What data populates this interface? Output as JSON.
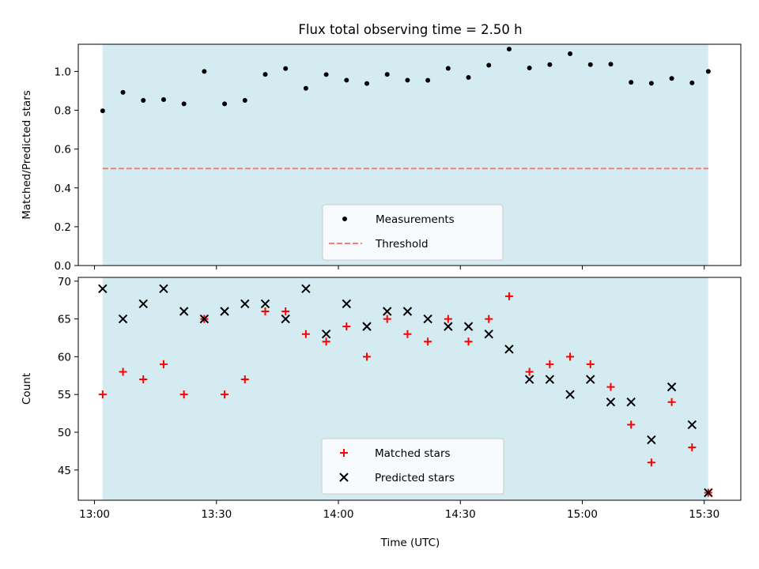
{
  "title": "Flux total observing time = 2.50 h",
  "x_axis": {
    "label": "Time (UTC)",
    "range": [
      "12:56",
      "15:39"
    ],
    "tick_labels": [
      "13:00",
      "13:30",
      "14:00",
      "14:30",
      "15:00",
      "15:30"
    ],
    "tick_values": [
      "13:00",
      "13:30",
      "14:00",
      "14:30",
      "15:00",
      "15:30"
    ]
  },
  "shaded_span": {
    "start": "13:02",
    "end": "15:31",
    "color": "#add8e6"
  },
  "chart_data": [
    {
      "type": "scatter",
      "ylabel": "Matched/Predicted stars",
      "ylim": [
        0,
        1.14
      ],
      "yticks": [
        "0.0",
        "0.2",
        "0.4",
        "0.6",
        "0.8",
        "1.0"
      ],
      "ytick_values": [
        0,
        0.2,
        0.4,
        0.6,
        0.8,
        1.0
      ],
      "legend_position": "lower-center",
      "series": [
        {
          "name": "Measurements",
          "marker": "dot",
          "color": "#000000",
          "x": [
            "13:02",
            "13:07",
            "13:12",
            "13:17",
            "13:22",
            "13:27",
            "13:32",
            "13:37",
            "13:42",
            "13:47",
            "13:52",
            "13:57",
            "14:02",
            "14:07",
            "14:12",
            "14:17",
            "14:22",
            "14:27",
            "14:32",
            "14:37",
            "14:42",
            "14:47",
            "14:52",
            "14:57",
            "15:02",
            "15:07",
            "15:12",
            "15:17",
            "15:22",
            "15:27",
            "15:31"
          ],
          "y": [
            0.797,
            0.892,
            0.851,
            0.855,
            0.833,
            1.0,
            0.833,
            0.851,
            0.985,
            1.015,
            0.913,
            0.984,
            0.955,
            0.938,
            0.985,
            0.955,
            0.954,
            1.016,
            0.969,
            1.032,
            1.115,
            1.018,
            1.035,
            1.091,
            1.035,
            1.037,
            0.944,
            0.939,
            0.964,
            0.941,
            1.0
          ]
        },
        {
          "name": "Threshold",
          "style": "dashed",
          "color": "#f08080",
          "x": [
            "13:02",
            "15:31"
          ],
          "y": [
            0.5,
            0.5
          ]
        }
      ]
    },
    {
      "type": "scatter",
      "ylabel": "Count",
      "ylim": [
        41,
        70.5
      ],
      "yticks": [
        "45",
        "50",
        "55",
        "60",
        "65",
        "70"
      ],
      "ytick_values": [
        45,
        50,
        55,
        60,
        65,
        70
      ],
      "legend_position": "lower-center",
      "series": [
        {
          "name": "Matched stars",
          "marker": "plus",
          "color": "#ff0000",
          "x": [
            "13:02",
            "13:07",
            "13:12",
            "13:17",
            "13:22",
            "13:27",
            "13:32",
            "13:37",
            "13:42",
            "13:47",
            "13:52",
            "13:57",
            "14:02",
            "14:07",
            "14:12",
            "14:17",
            "14:22",
            "14:27",
            "14:32",
            "14:37",
            "14:42",
            "14:47",
            "14:52",
            "14:57",
            "15:02",
            "15:07",
            "15:12",
            "15:17",
            "15:22",
            "15:27",
            "15:31"
          ],
          "y": [
            55,
            58,
            57,
            59,
            55,
            65,
            55,
            57,
            66,
            66,
            63,
            62,
            64,
            60,
            65,
            63,
            62,
            65,
            62,
            65,
            68,
            58,
            59,
            60,
            59,
            56,
            51,
            46,
            54,
            48,
            42
          ]
        },
        {
          "name": "Predicted stars",
          "marker": "x",
          "color": "#000000",
          "x": [
            "13:02",
            "13:07",
            "13:12",
            "13:17",
            "13:22",
            "13:27",
            "13:32",
            "13:37",
            "13:42",
            "13:47",
            "13:52",
            "13:57",
            "14:02",
            "14:07",
            "14:12",
            "14:17",
            "14:22",
            "14:27",
            "14:32",
            "14:37",
            "14:42",
            "14:47",
            "14:52",
            "14:57",
            "15:02",
            "15:07",
            "15:12",
            "15:17",
            "15:22",
            "15:27",
            "15:31"
          ],
          "y": [
            69,
            65,
            67,
            69,
            66,
            65,
            66,
            67,
            67,
            65,
            69,
            63,
            67,
            64,
            66,
            66,
            65,
            64,
            64,
            63,
            61,
            57,
            57,
            55,
            57,
            54,
            54,
            49,
            56,
            51,
            42
          ]
        }
      ]
    }
  ]
}
